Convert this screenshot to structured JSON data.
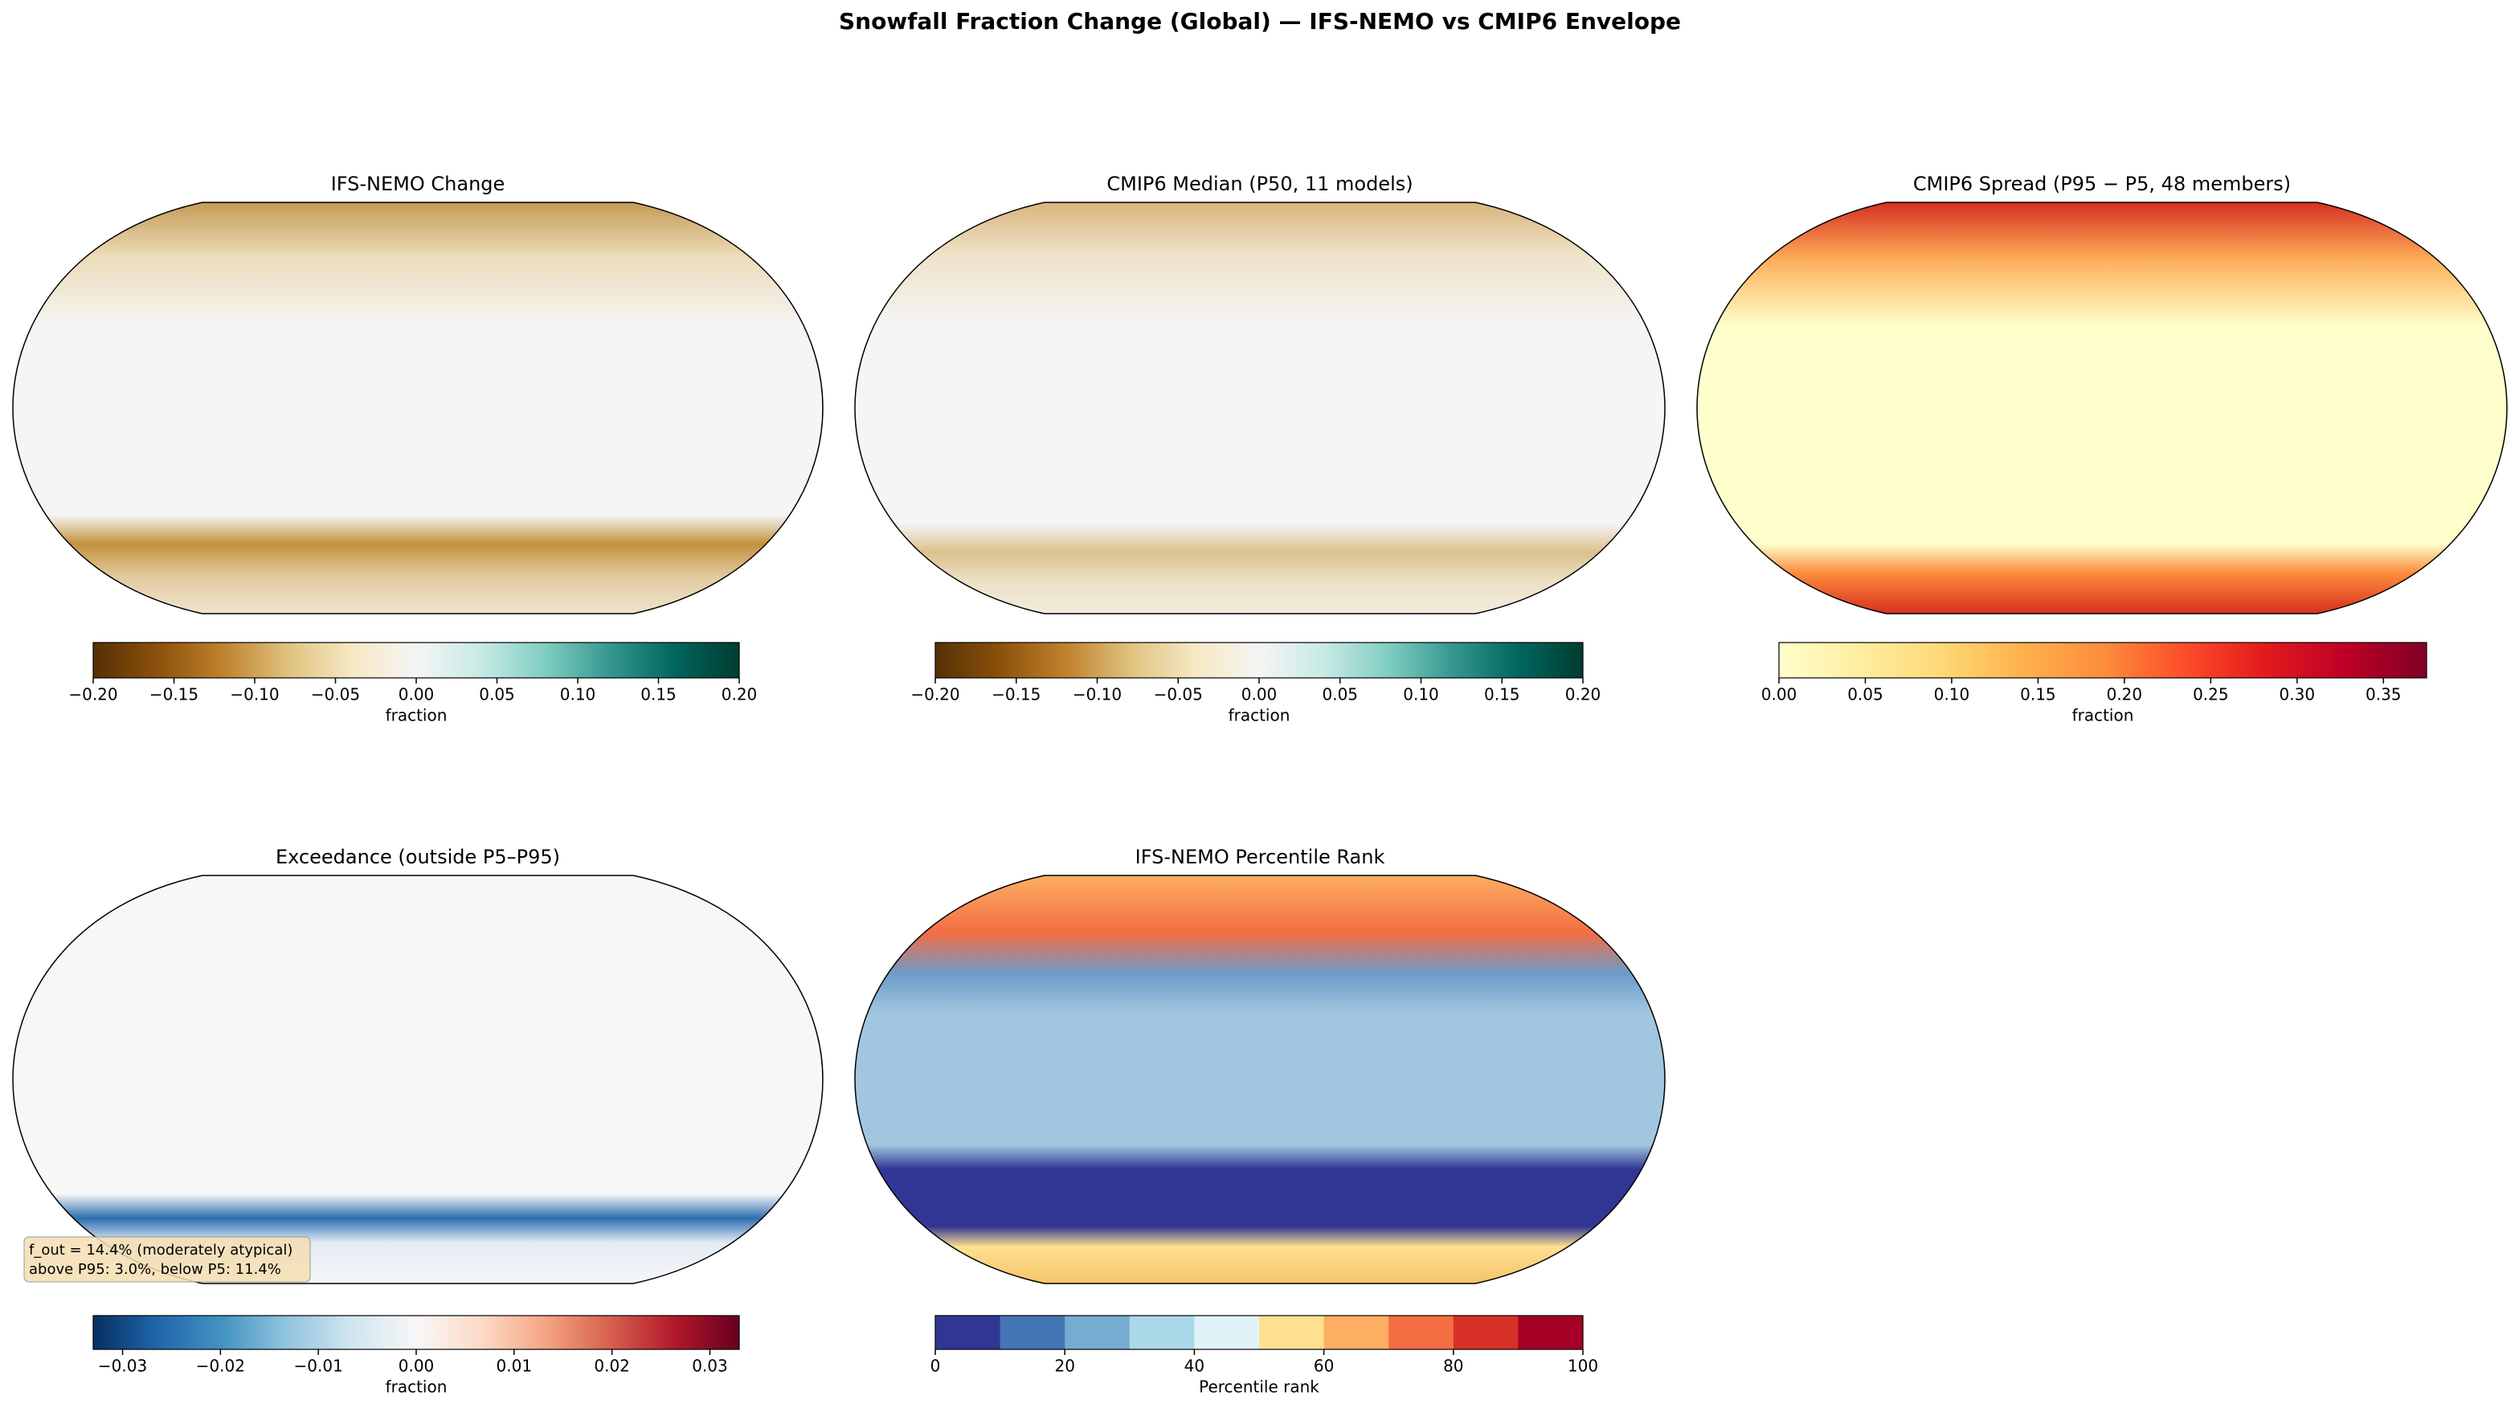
{
  "title": "Snowfall Fraction Change (Global) — IFS-NEMO vs CMIP6 Envelope",
  "panels": [
    {
      "title": "IFS-NEMO Change",
      "colorbar": {
        "label": "fraction",
        "lim": [
          -0.2,
          0.2
        ],
        "discrete": false,
        "colors": [
          "#543005",
          "#8c510a",
          "#bf812d",
          "#dfc27d",
          "#f6e8c3",
          "#f5f5f5",
          "#c7eae5",
          "#80cdc1",
          "#35978f",
          "#01665e",
          "#003c30"
        ],
        "ticks": [
          {
            "value": -0.2,
            "label": "−0.20"
          },
          {
            "value": -0.15,
            "label": "−0.15"
          },
          {
            "value": -0.1,
            "label": "−0.10"
          },
          {
            "value": -0.05,
            "label": "−0.05"
          },
          {
            "value": 0,
            "label": "0.00"
          },
          {
            "value": 0.05,
            "label": "0.05"
          },
          {
            "value": 0.1,
            "label": "0.10"
          },
          {
            "value": 0.15,
            "label": "0.15"
          },
          {
            "value": 0.2,
            "label": "0.20"
          }
        ]
      }
    },
    {
      "title": "CMIP6 Median (P50, 11 models)",
      "colorbar": {
        "label": "fraction",
        "lim": [
          -0.2,
          0.2
        ],
        "discrete": false,
        "colors": [
          "#543005",
          "#8c510a",
          "#bf812d",
          "#dfc27d",
          "#f6e8c3",
          "#f5f5f5",
          "#c7eae5",
          "#80cdc1",
          "#35978f",
          "#01665e",
          "#003c30"
        ],
        "ticks": [
          {
            "value": -0.2,
            "label": "−0.20"
          },
          {
            "value": -0.15,
            "label": "−0.15"
          },
          {
            "value": -0.1,
            "label": "−0.10"
          },
          {
            "value": -0.05,
            "label": "−0.05"
          },
          {
            "value": 0,
            "label": "0.00"
          },
          {
            "value": 0.05,
            "label": "0.05"
          },
          {
            "value": 0.1,
            "label": "0.10"
          },
          {
            "value": 0.15,
            "label": "0.15"
          },
          {
            "value": 0.2,
            "label": "0.20"
          }
        ]
      }
    },
    {
      "title": "CMIP6 Spread (P95 − P5, 48 members)",
      "colorbar": {
        "label": "fraction",
        "lim": [
          0,
          0.375
        ],
        "discrete": false,
        "colors": [
          "#ffffcc",
          "#ffeda0",
          "#fed976",
          "#feb24c",
          "#fd8d3c",
          "#fc4e2a",
          "#e31a1c",
          "#bd0026",
          "#800026"
        ],
        "ticks": [
          {
            "value": 0,
            "label": "0.00"
          },
          {
            "value": 0.05,
            "label": "0.05"
          },
          {
            "value": 0.1,
            "label": "0.10"
          },
          {
            "value": 0.15,
            "label": "0.15"
          },
          {
            "value": 0.2,
            "label": "0.20"
          },
          {
            "value": 0.25,
            "label": "0.25"
          },
          {
            "value": 0.3,
            "label": "0.30"
          },
          {
            "value": 0.35,
            "label": "0.35"
          }
        ]
      }
    },
    {
      "title": "Exceedance (outside P5–P95)",
      "annotation": [
        "f_out = 14.4% (moderately atypical)",
        "above P95: 3.0%, below P5: 11.4%"
      ],
      "colorbar": {
        "label": "fraction",
        "lim": [
          -0.033,
          0.033
        ],
        "discrete": false,
        "colors": [
          "#053061",
          "#2166ac",
          "#4393c3",
          "#92c5de",
          "#d1e5f0",
          "#f7f7f7",
          "#fddbc7",
          "#f4a582",
          "#d6604d",
          "#b2182b",
          "#67001f"
        ],
        "ticks": [
          {
            "value": -0.03,
            "label": "−0.03"
          },
          {
            "value": -0.02,
            "label": "−0.02"
          },
          {
            "value": -0.01,
            "label": "−0.01"
          },
          {
            "value": 0,
            "label": "0.00"
          },
          {
            "value": 0.01,
            "label": "0.01"
          },
          {
            "value": 0.02,
            "label": "0.02"
          },
          {
            "value": 0.03,
            "label": "0.03"
          }
        ]
      }
    },
    {
      "title": "IFS-NEMO Percentile Rank",
      "colorbar": {
        "label": "Percentile rank",
        "lim": [
          0,
          100
        ],
        "discrete": true,
        "colors": [
          "#313695",
          "#4575b4",
          "#74add1",
          "#abd9e9",
          "#e0f3f8",
          "#fee090",
          "#fdae61",
          "#f46d43",
          "#d73027",
          "#a50026"
        ],
        "ticks": [
          0,
          20,
          40,
          60,
          80,
          100
        ]
      }
    }
  ]
}
